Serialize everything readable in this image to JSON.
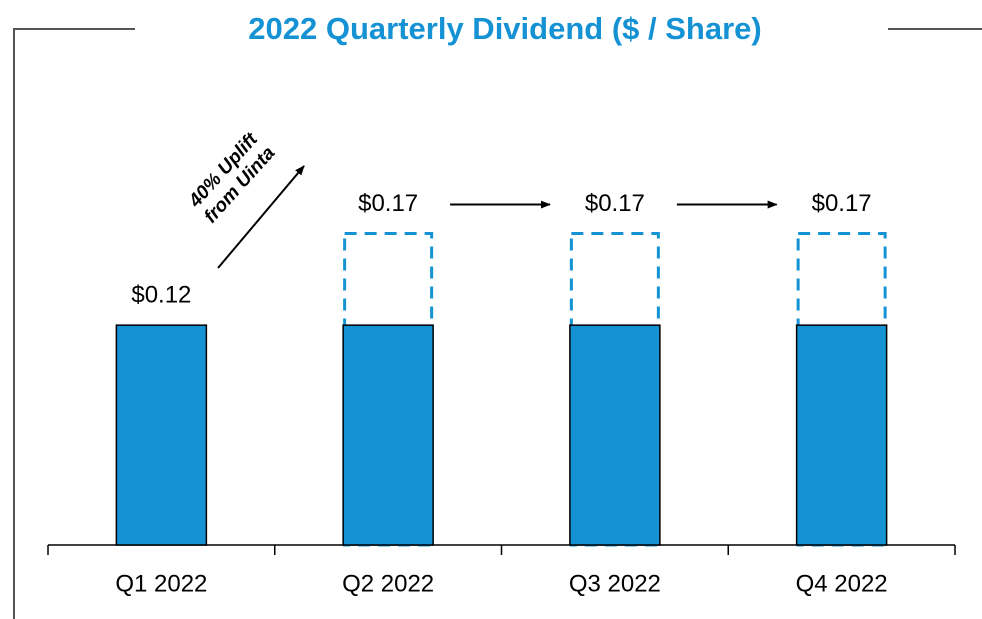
{
  "chart_data": {
    "type": "bar",
    "title": "2022 Quarterly Dividend ($ / Share)",
    "categories": [
      "Q1 2022",
      "Q2 2022",
      "Q3 2022",
      "Q4 2022"
    ],
    "overlap": true,
    "series": [
      {
        "color": "#1592d4",
        "style": "solid",
        "values": [
          0.12,
          0.12,
          0.12,
          0.12
        ],
        "value_labels": [
          "$0.12",
          null,
          null,
          null
        ]
      },
      {
        "color": "#1592d4",
        "style": "dashed",
        "values": [
          null,
          0.17,
          0.17,
          0.17
        ],
        "value_labels": [
          null,
          "$0.17",
          "$0.17",
          "$0.17"
        ]
      }
    ],
    "ylim": [
      0,
      0.25
    ],
    "annotation": [
      "40% Uplift",
      "from Uinta"
    ]
  }
}
